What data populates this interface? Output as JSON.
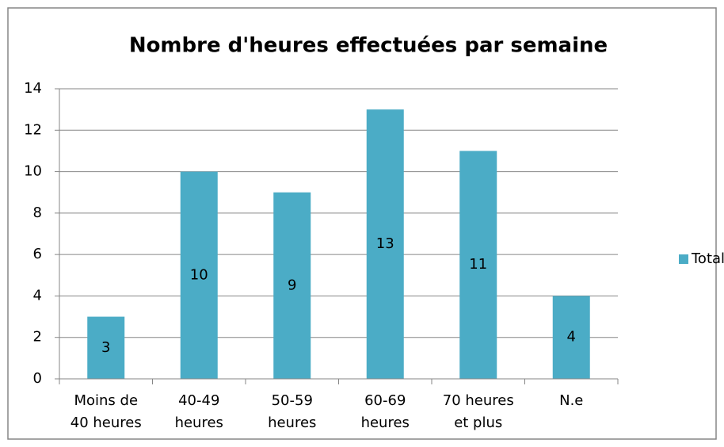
{
  "chart_data": {
    "type": "bar",
    "title": "Nombre d'heures effectuées par semaine",
    "categories": [
      "Moins de 40 heures",
      "40-49 heures",
      "50-59 heures",
      "60-69 heures",
      "70 heures et plus",
      "N.e"
    ],
    "series": [
      {
        "name": "Total",
        "color": "#4bacc6",
        "values": [
          3,
          10,
          9,
          13,
          11,
          4
        ]
      }
    ],
    "ylim": [
      0,
      14
    ],
    "yticks": [
      0,
      2,
      4,
      6,
      8,
      10,
      12,
      14
    ],
    "grid": true,
    "legend": "right"
  }
}
